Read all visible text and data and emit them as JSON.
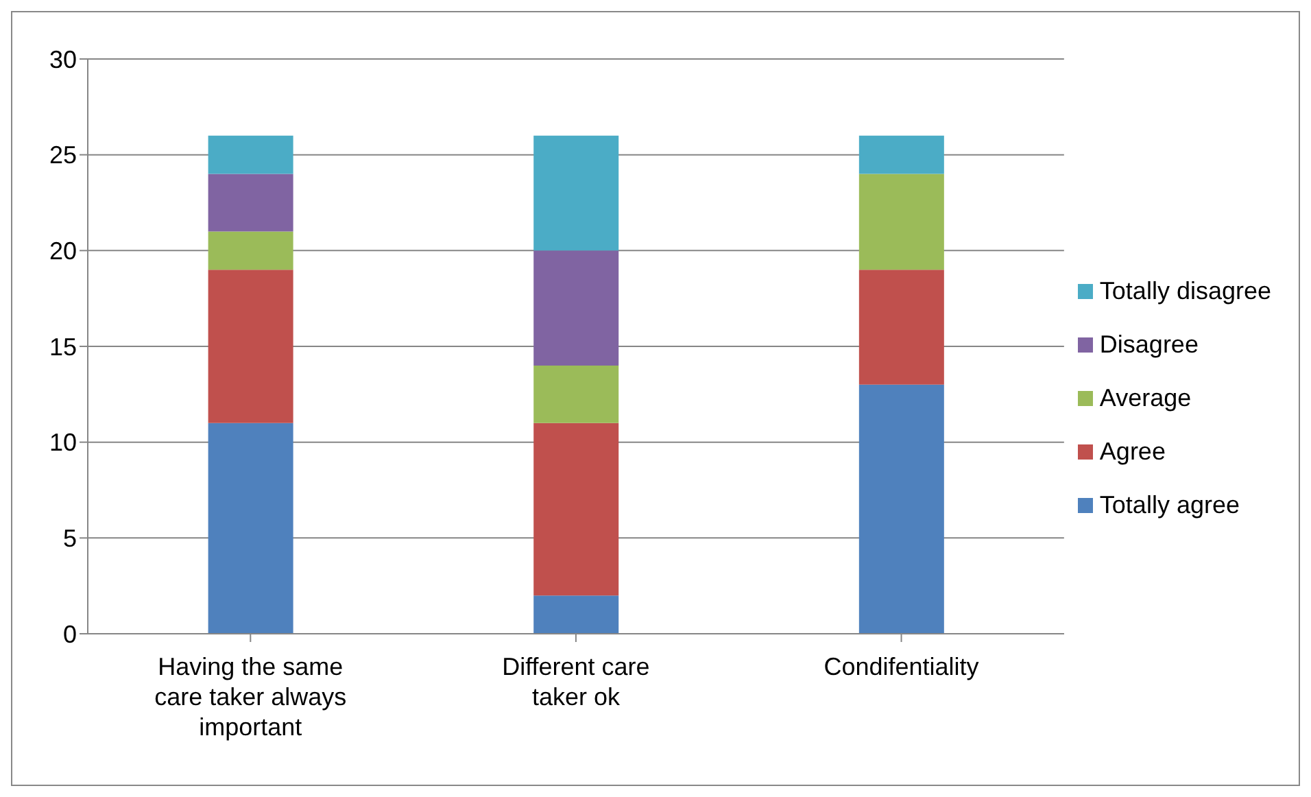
{
  "chart_data": {
    "type": "bar",
    "stacked": true,
    "categories": [
      "Having the same care taker always important",
      "Different care taker ok",
      "Condifentiality"
    ],
    "series": [
      {
        "name": "Totally agree",
        "color": "#4f81bd",
        "values": [
          11,
          2,
          13
        ]
      },
      {
        "name": "Agree",
        "color": "#c0504d",
        "values": [
          8,
          9,
          6
        ]
      },
      {
        "name": "Average",
        "color": "#9bbb59",
        "values": [
          2,
          3,
          5
        ]
      },
      {
        "name": "Disagree",
        "color": "#8064a2",
        "values": [
          3,
          6,
          0
        ]
      },
      {
        "name": "Totally disagree",
        "color": "#4bacc6",
        "values": [
          2,
          6,
          2
        ]
      }
    ],
    "ylim": [
      0,
      30
    ],
    "yticks": [
      0,
      5,
      10,
      15,
      20,
      25,
      30
    ],
    "grid": "y",
    "legend": "right"
  }
}
